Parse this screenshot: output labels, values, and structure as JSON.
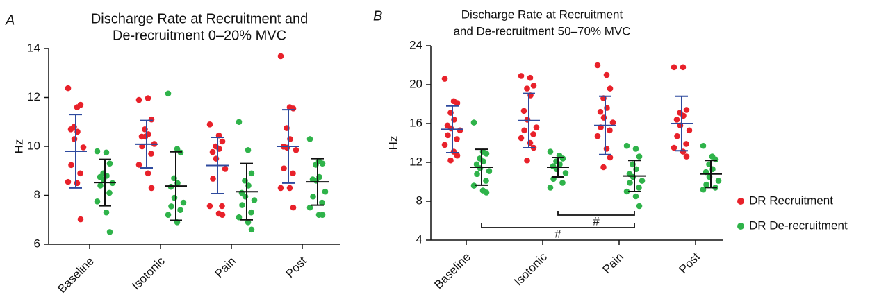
{
  "chart_data": [
    {
      "type": "dotplot",
      "panel": "A",
      "title": [
        "Discharge Rate at Recruitment and",
        "De-recruitment 0–20% MVC"
      ],
      "ylabel": "Hz",
      "categories": [
        "Baseline",
        "Isotonic",
        "Pain",
        "Post"
      ],
      "ylim": [
        6,
        14
      ],
      "yticks": [
        6,
        8,
        10,
        12,
        14
      ],
      "series": [
        {
          "color": "#e8212a",
          "errorbar_color": "#2e4a9e",
          "values": [
            [
              12.38,
              11.6,
              11.7,
              10.8,
              10.6,
              10.7,
              10.3,
              9.96,
              9.24,
              8.9,
              8.55,
              8.5,
              7.02
            ],
            [
              11.9,
              11.97,
              11.1,
              10.7,
              10.5,
              10.4,
              10.4,
              10.1,
              10.0,
              9.7,
              9.25,
              8.9,
              8.3
            ],
            [
              10.9,
              10.45,
              10.2,
              10.0,
              9.9,
              9.77,
              9.5,
              9.08,
              8.68,
              7.56,
              7.56,
              7.25,
              7.2
            ],
            [
              13.69,
              11.6,
              11.55,
              10.75,
              10.3,
              9.99,
              9.95,
              9.85,
              9.1,
              8.9,
              8.3,
              8.3,
              7.5
            ]
          ],
          "mean": [
            9.8,
            10.09,
            9.22,
            10.0
          ],
          "sd": [
            1.5,
            0.97,
            1.15,
            1.5
          ]
        },
        {
          "color": "#2fb34a",
          "errorbar_color": "#111111",
          "values": [
            [
              9.8,
              9.75,
              9.3,
              8.9,
              8.8,
              8.75,
              8.65,
              8.5,
              8.4,
              8.1,
              7.75,
              7.3,
              6.5
            ],
            [
              12.16,
              9.9,
              9.75,
              8.7,
              8.5,
              8.35,
              7.9,
              7.7,
              7.55,
              7.4,
              7.2,
              6.9
            ],
            [
              11.0,
              9.85,
              8.9,
              8.6,
              8.4,
              8.1,
              7.95,
              7.8,
              7.6,
              7.3,
              7.1,
              6.9,
              6.6
            ],
            [
              10.3,
              9.4,
              9.3,
              9.25,
              8.75,
              8.65,
              8.6,
              8.15,
              7.95,
              7.7,
              7.5,
              7.2,
              7.2
            ]
          ],
          "mean": [
            8.52,
            8.38,
            8.15,
            8.55
          ],
          "sd": [
            0.95,
            1.4,
            1.15,
            0.95
          ]
        }
      ]
    },
    {
      "type": "dotplot",
      "panel": "B",
      "title": [
        "Discharge Rate at Recruitment",
        "and De-recruitment 50–70% MVC"
      ],
      "ylabel": "Hz",
      "categories": [
        "Baseline",
        "Isotonic",
        "Pain",
        "Post"
      ],
      "ylim": [
        4,
        24
      ],
      "yticks": [
        4,
        8,
        12,
        16,
        20,
        24
      ],
      "legend": "right",
      "series": [
        {
          "name": "DR Recruitment",
          "color": "#e8212a",
          "errorbar_color": "#2e4a9e",
          "values": [
            [
              20.6,
              18.3,
              18.1,
              17.1,
              16.4,
              15.8,
              15.5,
              15.3,
              14.8,
              14.4,
              13.8,
              13.1,
              12.7,
              12.2
            ],
            [
              20.9,
              20.7,
              19.9,
              19.6,
              18.9,
              17.3,
              16.4,
              15.6,
              15.3,
              14.9,
              14.5,
              14.0,
              13.5,
              12.2
            ],
            [
              22.0,
              21.0,
              19.6,
              18.6,
              17.6,
              17.2,
              16.6,
              16.1,
              15.6,
              15.3,
              14.7,
              13.4,
              12.5,
              11.5
            ],
            [
              21.8,
              21.8,
              17.4,
              17.1,
              16.8,
              16.4,
              15.8,
              15.3,
              14.7,
              13.9,
              13.5,
              13.1,
              12.6
            ]
          ],
          "mean": [
            15.4,
            16.3,
            15.8,
            16.0
          ],
          "sd": [
            2.4,
            2.8,
            3.0,
            2.8
          ]
        },
        {
          "name": "DR De-recruitment",
          "color": "#2fb34a",
          "errorbar_color": "#111111",
          "values": [
            [
              16.1,
              13.1,
              12.9,
              12.4,
              12.1,
              11.8,
              11.4,
              11.1,
              10.8,
              10.1,
              9.6,
              9.1,
              8.9
            ],
            [
              13.1,
              12.7,
              12.4,
              12.1,
              11.8,
              11.6,
              11.3,
              10.9,
              10.3,
              9.9,
              9.4
            ],
            [
              13.7,
              13.4,
              12.6,
              11.8,
              11.3,
              10.8,
              10.5,
              10.1,
              9.9,
              9.4,
              9.0,
              8.5,
              7.5
            ],
            [
              13.7,
              12.6,
              12.3,
              11.8,
              11.3,
              11.0,
              10.5,
              10.1,
              9.7,
              9.4,
              9.2
            ]
          ],
          "mean": [
            11.5,
            11.5,
            10.6,
            10.8
          ],
          "sd": [
            1.85,
            1.0,
            1.6,
            1.4
          ]
        }
      ],
      "annotations": [
        {
          "text": "#",
          "from": 1,
          "to": 2
        },
        {
          "text": "#",
          "from": 0,
          "to": 2
        }
      ]
    }
  ]
}
